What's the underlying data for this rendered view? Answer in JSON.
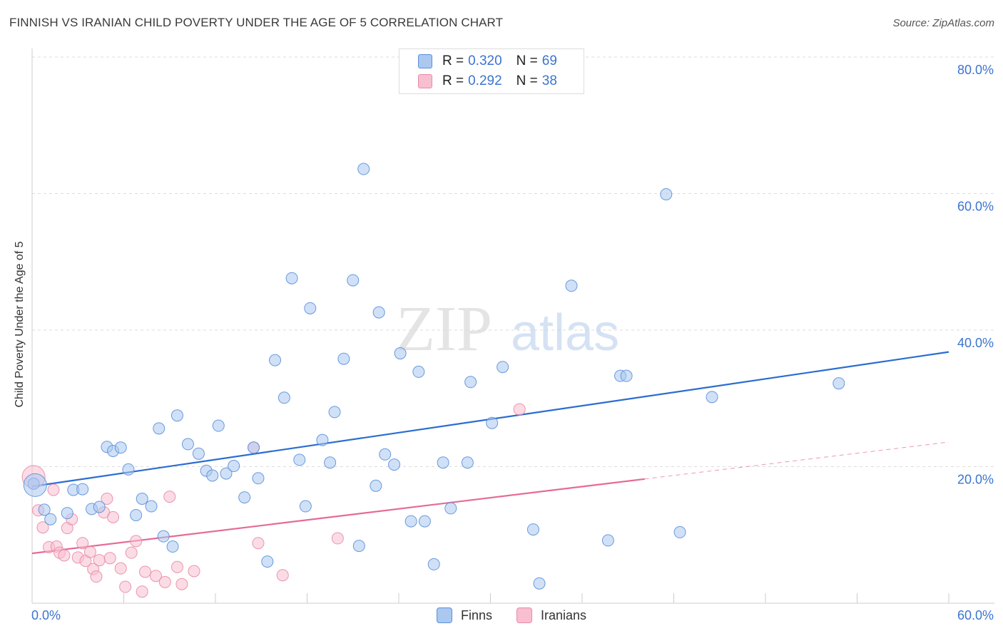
{
  "title": "FINNISH VS IRANIAN CHILD POVERTY UNDER THE AGE OF 5 CORRELATION CHART",
  "source": "Source: ZipAtlas.com",
  "watermark": {
    "zip": "ZIP",
    "atlas": "atlas"
  },
  "colors": {
    "finns_fill": "#aac8f0",
    "finns_stroke": "#5b8fdb",
    "finns_line": "#2a6dd0",
    "iranians_fill": "#f7bfd0",
    "iranians_stroke": "#e98aa8",
    "iranians_line": "#e56b96",
    "axis_text": "#3b74d0",
    "grid": "#dddddd"
  },
  "legend": {
    "finns": {
      "r_label": "R =",
      "r_value": "0.320",
      "n_label": "N =",
      "n_value": "69"
    },
    "iranians": {
      "r_label": "R =",
      "r_value": "0.292",
      "n_label": "N =",
      "n_value": "38"
    }
  },
  "chart_data": {
    "type": "scatter",
    "title": "FINNISH VS IRANIAN CHILD POVERTY UNDER THE AGE OF 5 CORRELATION CHART",
    "xlabel": "",
    "ylabel": "Child Poverty Under the Age of 5",
    "xlim": [
      0,
      60
    ],
    "ylim": [
      0,
      80
    ],
    "x_tick_labels": [
      "0.0%",
      "60.0%"
    ],
    "y_tick_labels": [
      "20.0%",
      "40.0%",
      "60.0%",
      "80.0%"
    ],
    "y_ticks": [
      20,
      40,
      60,
      80
    ],
    "grid": true,
    "legend_position": "top-center",
    "series": [
      {
        "name": "Finns",
        "r": 0.32,
        "n": 69,
        "trend": {
          "x": [
            0,
            60
          ],
          "y": [
            17.1,
            36.8
          ],
          "dashed_from": null
        },
        "points": [
          [
            0.1,
            17.5
          ],
          [
            0.8,
            13.7
          ],
          [
            1.2,
            12.3
          ],
          [
            2.3,
            13.2
          ],
          [
            2.7,
            16.6
          ],
          [
            3.3,
            16.7
          ],
          [
            3.9,
            13.8
          ],
          [
            4.4,
            14.1
          ],
          [
            4.9,
            22.9
          ],
          [
            5.3,
            22.3
          ],
          [
            5.8,
            22.8
          ],
          [
            6.3,
            19.6
          ],
          [
            6.8,
            12.9
          ],
          [
            7.2,
            15.3
          ],
          [
            7.8,
            14.2
          ],
          [
            8.3,
            25.6
          ],
          [
            8.6,
            9.8
          ],
          [
            9.2,
            8.3
          ],
          [
            9.5,
            27.5
          ],
          [
            10.2,
            23.3
          ],
          [
            10.9,
            21.9
          ],
          [
            11.4,
            19.4
          ],
          [
            11.8,
            18.7
          ],
          [
            12.2,
            26.0
          ],
          [
            12.7,
            19.0
          ],
          [
            13.2,
            20.1
          ],
          [
            13.9,
            15.5
          ],
          [
            14.5,
            22.8
          ],
          [
            14.8,
            18.3
          ],
          [
            15.4,
            6.1
          ],
          [
            15.9,
            35.6
          ],
          [
            16.5,
            30.1
          ],
          [
            17.0,
            47.6
          ],
          [
            17.5,
            21.0
          ],
          [
            17.9,
            14.2
          ],
          [
            18.2,
            43.2
          ],
          [
            19.0,
            23.9
          ],
          [
            19.5,
            20.6
          ],
          [
            19.8,
            28.0
          ],
          [
            20.4,
            35.8
          ],
          [
            21.0,
            47.3
          ],
          [
            21.4,
            8.4
          ],
          [
            21.7,
            63.6
          ],
          [
            22.5,
            17.2
          ],
          [
            22.7,
            42.6
          ],
          [
            23.1,
            21.8
          ],
          [
            23.7,
            20.3
          ],
          [
            24.1,
            36.6
          ],
          [
            24.8,
            12.0
          ],
          [
            25.3,
            33.9
          ],
          [
            25.7,
            12.0
          ],
          [
            26.3,
            5.7
          ],
          [
            26.9,
            20.6
          ],
          [
            27.4,
            13.9
          ],
          [
            28.5,
            20.6
          ],
          [
            28.7,
            32.4
          ],
          [
            30.1,
            26.4
          ],
          [
            30.8,
            34.6
          ],
          [
            32.8,
            10.8
          ],
          [
            33.2,
            2.9
          ],
          [
            35.3,
            46.5
          ],
          [
            37.7,
            9.2
          ],
          [
            38.5,
            33.3
          ],
          [
            38.9,
            33.3
          ],
          [
            41.5,
            59.9
          ],
          [
            42.4,
            10.4
          ],
          [
            44.5,
            30.2
          ],
          [
            52.8,
            32.2
          ],
          [
            0.2,
            17.3
          ]
        ]
      },
      {
        "name": "Iranians",
        "r": 0.292,
        "n": 38,
        "trend": {
          "x": [
            0,
            60
          ],
          "y": [
            7.3,
            23.6
          ],
          "dashed_from": 40.1
        },
        "points": [
          [
            0.1,
            18.5
          ],
          [
            0.4,
            13.6
          ],
          [
            0.7,
            11.1
          ],
          [
            1.1,
            8.2
          ],
          [
            1.4,
            16.6
          ],
          [
            1.6,
            8.3
          ],
          [
            1.8,
            7.4
          ],
          [
            2.1,
            7.0
          ],
          [
            2.3,
            11.0
          ],
          [
            2.6,
            12.3
          ],
          [
            3.0,
            6.7
          ],
          [
            3.3,
            8.8
          ],
          [
            3.5,
            6.2
          ],
          [
            3.8,
            7.5
          ],
          [
            4.0,
            5.0
          ],
          [
            4.2,
            3.9
          ],
          [
            4.4,
            6.3
          ],
          [
            4.7,
            13.3
          ],
          [
            4.9,
            15.3
          ],
          [
            5.1,
            6.6
          ],
          [
            5.3,
            12.6
          ],
          [
            5.8,
            5.1
          ],
          [
            6.1,
            2.4
          ],
          [
            6.5,
            7.4
          ],
          [
            6.8,
            9.1
          ],
          [
            7.2,
            1.7
          ],
          [
            7.4,
            4.6
          ],
          [
            8.1,
            4.0
          ],
          [
            8.7,
            3.1
          ],
          [
            9.0,
            15.6
          ],
          [
            9.5,
            5.3
          ],
          [
            9.8,
            2.8
          ],
          [
            10.6,
            4.7
          ],
          [
            14.5,
            22.8
          ],
          [
            14.8,
            8.8
          ],
          [
            16.4,
            4.1
          ],
          [
            20.0,
            9.5
          ],
          [
            31.9,
            28.4
          ]
        ]
      }
    ]
  }
}
